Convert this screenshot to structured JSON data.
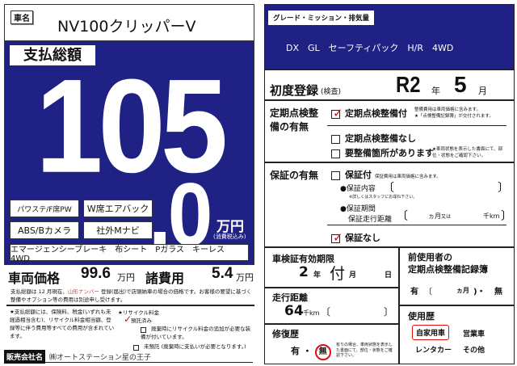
{
  "car_name": {
    "label": "車名",
    "value": "NV100クリッパーV"
  },
  "total": {
    "label": "支払総額",
    "integer": "105",
    "decimal": ".0",
    "unit": "万円",
    "tax_note": "(消費税込み)"
  },
  "features": [
    "パワステ/F席PW",
    "W席エアバック",
    "ABS/Bカメラ",
    "社外Mナビ"
  ],
  "features_line": "エマージェンシーブレーキ　布シート　Pガラス　キーレス　4WD",
  "price": {
    "vehicle_label": "車両価格",
    "vehicle_value": "99.6",
    "vehicle_unit": "万円",
    "fees_label": "諸費用",
    "fees_value": "5.4",
    "fees_unit": "万円",
    "note_pre": "支払総額は 12 月現在、",
    "note_plate": "山形ナンバー",
    "note_post": " 登録(届出)で店頭納車の場合の価格です。お客様の要望に基づく整備やオプション等の費用は別途申し受けます。"
  },
  "notes": {
    "left": "★支払総額には、保険料、税金(いずれも未経過相当含む)、リサイクル料金相当額、登録等に伴う費用等すべての費用が含まれています。",
    "recycle_title": "★リサイクル料金",
    "recycle_deposited": "預託済み",
    "recycle_extra": "廃棄時にリサイクル料金の追加が必要な装備が付いています。",
    "recycle_undeposited": "未預託 (廃棄時に支払いが必要となります。)"
  },
  "dealer": {
    "label": "販売会社名",
    "value": "㈱オートステーション星の王子"
  },
  "grade": {
    "label": "グレード・ミッション・排気量",
    "value": "DX　GL　セーフティパック　H/R　4WD"
  },
  "first_reg": {
    "label": "初度登録",
    "sub": "(検査)",
    "year": "R2",
    "year_unit": "年",
    "month": "5",
    "month_unit": "月"
  },
  "inspection": {
    "label": "定期点検整備の有無",
    "opt1": "定期点検整備付",
    "opt1_note1": "整備費用は車両価格に含みます。",
    "opt1_note2": "★「点検整備記録簿」が交付されます。",
    "opt2": "定期点検整備なし",
    "opt3": "要整備箇所があります",
    "opt3_note": "★車両状態を表示した書面にて、部位・状態をご確認下さい。",
    "selected": "定期点検整備付"
  },
  "warranty": {
    "label": "保証の有無",
    "opt1": "保証付",
    "opt1_note": "保証費用は車両価格に含みます。",
    "content_label": "●保証内容",
    "content_note": "※詳しくはスタッフにお尋ね下さい。",
    "period_label": "●保証期間",
    "distance_label": "保証走行距離",
    "months_unit": "ヵ月",
    "or": "又は",
    "km_unit": "千km",
    "opt2": "保証なし",
    "selected": "保証なし"
  },
  "shaken": {
    "label": "車検証有効期限",
    "year": "2",
    "year_unit": "年",
    "month": "付",
    "month_unit": "月",
    "day_unit": "日"
  },
  "mileage": {
    "label": "走行距離",
    "value": "64",
    "unit": "千km"
  },
  "repair": {
    "label": "修復歴",
    "yes": "有",
    "sep": "・",
    "no": "無",
    "selected": "無",
    "note": "有りの場合、車両状態を表示した書面にて、部位・状態をご確認下さい。"
  },
  "prev_record": {
    "label1": "前使用者の",
    "label2": "定期点検整備記録簿",
    "yes": "有",
    "months_unit": "ヵ月",
    "sep": ")・",
    "no": "無"
  },
  "usage": {
    "label": "使用歴",
    "options": [
      "自家用車",
      "営業車",
      "レンタカー",
      "その他"
    ],
    "selected": "自家用車"
  },
  "colors": {
    "brand_blue": "#1f2185",
    "check_red": "#e01010"
  }
}
